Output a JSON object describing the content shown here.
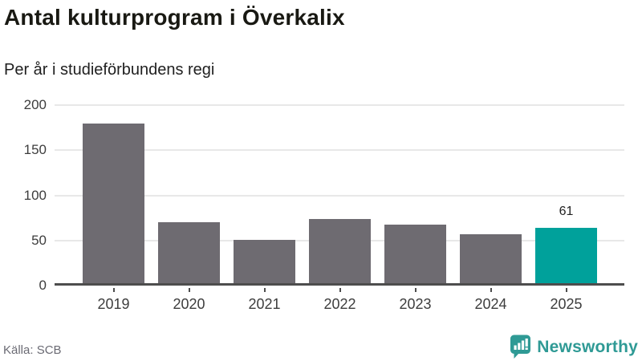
{
  "header": {
    "title": "Antal kulturprogram i Överkalix",
    "subtitle": "Per år i studieförbundens regi"
  },
  "footer": {
    "source": "Källa: SCB",
    "brand_name": "Newsworthy",
    "brand_icon": "newsworthy-speech-bubble-chart-icon"
  },
  "colors": {
    "bar_default": "#6e6b71",
    "bar_highlight": "#00a19b",
    "brand_teal": "#2f9a95",
    "gridline": "#e8e8e8",
    "axis": "#4d4d4d",
    "tick_label": "#3d3d3d",
    "value_label": "#222222",
    "source_text": "#6b6b74"
  },
  "chart_data": {
    "type": "bar",
    "title": "Antal kulturprogram i Överkalix",
    "subtitle": "Per år i studieförbundens regi",
    "categories": [
      "2019",
      "2020",
      "2021",
      "2022",
      "2023",
      "2024",
      "2025"
    ],
    "values": [
      177,
      68,
      48,
      71,
      65,
      54,
      61
    ],
    "highlight_index": 6,
    "highlight_value_label": "61",
    "xlabel": "",
    "ylabel": "",
    "ylim": [
      0,
      200
    ],
    "yticks": [
      0,
      50,
      100,
      150,
      200
    ],
    "grid": true,
    "legend": false,
    "source": "Källa: SCB"
  }
}
